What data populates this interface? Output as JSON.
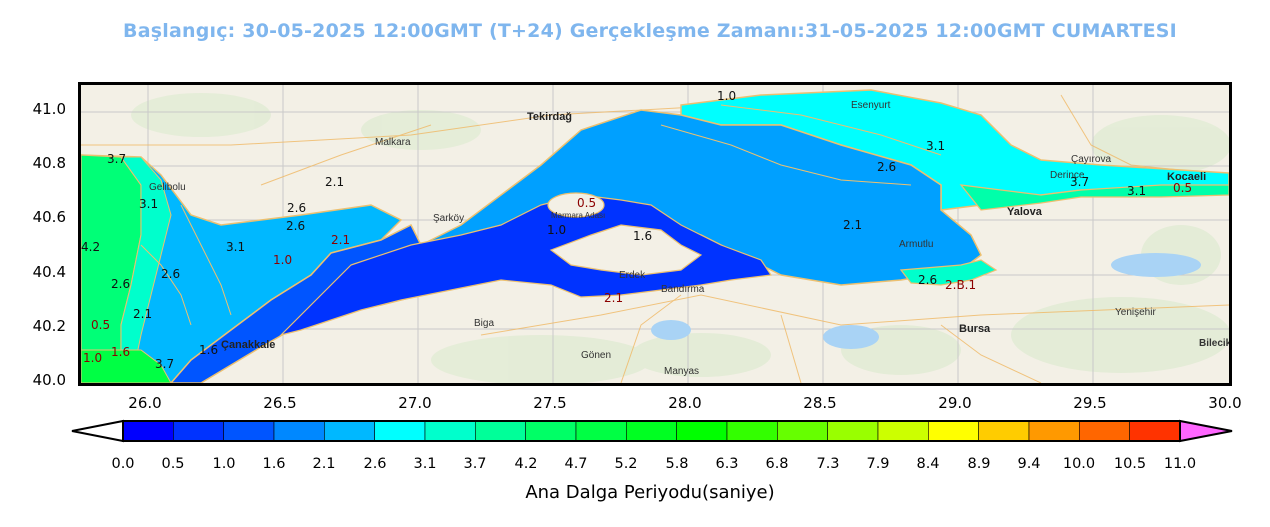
{
  "title": "Başlangıç: 30-05-2025 12:00GMT (T+24)  Gerçekleşme Zamanı:31-05-2025 12:00GMT CUMARTESI",
  "map": {
    "lon_range": [
      25.75,
      30.0
    ],
    "lat_range": [
      40.0,
      41.1
    ],
    "y_ticks": [
      "41.0",
      "40.8",
      "40.6",
      "40.4",
      "40.2",
      "40.0"
    ],
    "x_ticks": [
      "26.0",
      "26.5",
      "27.0",
      "27.5",
      "28.0",
      "28.5",
      "29.0",
      "29.5",
      "30.0"
    ],
    "places": [
      {
        "name": "Tekirdağ",
        "big": true
      },
      {
        "name": "Marmara Adası",
        "big": false
      },
      {
        "name": "Yalova",
        "big": true
      },
      {
        "name": "Bursa",
        "big": true
      },
      {
        "name": "Çanakkale",
        "big": true
      },
      {
        "name": "Kocaeli",
        "big": true
      },
      {
        "name": "Bandırma",
        "big": false
      },
      {
        "name": "Gönen",
        "big": false
      },
      {
        "name": "Manyas",
        "big": false
      },
      {
        "name": "Malkara",
        "big": false
      },
      {
        "name": "Armutlu",
        "big": false
      },
      {
        "name": "Biga",
        "big": false
      },
      {
        "name": "Şarköy",
        "big": false
      },
      {
        "name": "Gelibolu",
        "big": false
      },
      {
        "name": "Erdek",
        "big": false
      },
      {
        "name": "Derince",
        "big": false
      },
      {
        "name": "Çayırova",
        "big": false
      },
      {
        "name": "Esenyurt",
        "big": false
      },
      {
        "name": "Bilecik",
        "big": false
      },
      {
        "name": "Yenişehir",
        "big": false
      }
    ],
    "contour_labels": [
      "1.0",
      "3.7",
      "3.1",
      "2.6",
      "2.1",
      "0.5",
      "1.0",
      "1.6",
      "2.6",
      "2.1",
      "3.1",
      "3.7",
      "3.1",
      "0.5",
      "4.2",
      "2.6",
      "3.1",
      "2.6",
      "2.1",
      "2.6",
      "1.0",
      "2.1",
      "0.5",
      "1.6",
      "3.7",
      "1.0",
      "1.6",
      "2.1",
      "2.6",
      "2.B.1"
    ]
  },
  "colorbar": {
    "label": "Ana Dalga Periyodu(saniye)",
    "ticks": [
      "0.0",
      "0.5",
      "1.0",
      "1.6",
      "2.1",
      "2.6",
      "3.1",
      "3.7",
      "4.2",
      "4.7",
      "5.2",
      "5.8",
      "6.3",
      "6.8",
      "7.3",
      "7.9",
      "8.4",
      "8.9",
      "9.4",
      "10.0",
      "10.5",
      "11.0"
    ],
    "colors": [
      "#0000ff",
      "#0033ff",
      "#0055ff",
      "#0088ff",
      "#00b8ff",
      "#00ffff",
      "#00ffcc",
      "#00ff99",
      "#00ff66",
      "#00ff44",
      "#00ff22",
      "#00ff00",
      "#33ff00",
      "#66ff00",
      "#99ff00",
      "#ccff00",
      "#ffff00",
      "#ffcc00",
      "#ff9900",
      "#ff6600",
      "#ff3300",
      "#ff0000"
    ],
    "under_color": "#ffffff",
    "over_color": "#ff66ff"
  }
}
